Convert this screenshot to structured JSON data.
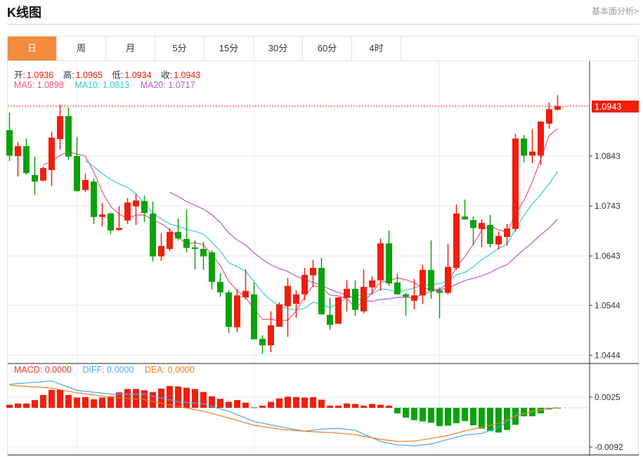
{
  "header": {
    "title": "K线图",
    "link": "基本面分析>"
  },
  "tabs": [
    {
      "label": "日",
      "active": true
    },
    {
      "label": "周"
    },
    {
      "label": "月"
    },
    {
      "label": "5分"
    },
    {
      "label": "15分"
    },
    {
      "label": "30分"
    },
    {
      "label": "60分"
    },
    {
      "label": "4时"
    }
  ],
  "ohlc_legend": {
    "open_label": "开:",
    "open": "1.0936",
    "high_label": "高:",
    "high": "1.0965",
    "low_label": "低:",
    "low": "1.0934",
    "close_label": "收:",
    "close": "1.0943"
  },
  "ma_legend": {
    "ma5": "MA5: 1.0898",
    "ma10": "MA10: 1.0813",
    "ma20": "MA20: 1.0717"
  },
  "macd_legend": {
    "macd": "MACD: 0.0000",
    "diff": "DIFF: 0.0000",
    "dea": "DEA: 0.0000"
  },
  "colors": {
    "up": "#f01e0a",
    "down": "#0aa30a",
    "ma5": "#f0508a",
    "ma10": "#36c8e0",
    "ma20": "#b45ac8",
    "diff": "#4aa8f0",
    "dea": "#f57a1e",
    "accent": "#f28b3c"
  },
  "chart_data": {
    "type": "candlestick",
    "price_axis_ticks": [
      "1.0843",
      "1.0743",
      "1.0643",
      "1.0544",
      "1.0444"
    ],
    "current_price": "1.0943",
    "ohlc_format": [
      "open",
      "high",
      "low",
      "close"
    ],
    "candles": [
      [
        1.0895,
        1.093,
        1.0833,
        1.0844
      ],
      [
        1.0843,
        1.0871,
        1.0802,
        1.0863
      ],
      [
        1.0863,
        1.0878,
        1.0806,
        1.0809
      ],
      [
        1.0805,
        1.0842,
        1.0766,
        1.0792
      ],
      [
        1.0794,
        1.0822,
        1.0792,
        1.0819
      ],
      [
        1.0815,
        1.0892,
        1.0783,
        1.088
      ],
      [
        1.0877,
        1.0946,
        1.0856,
        1.0923
      ],
      [
        1.0923,
        1.094,
        1.0836,
        1.0842
      ],
      [
        1.0843,
        1.0881,
        1.0772,
        1.0773
      ],
      [
        1.0775,
        1.0808,
        1.0771,
        1.0795
      ],
      [
        1.0792,
        1.0798,
        1.0707,
        1.0721
      ],
      [
        1.0721,
        1.0749,
        1.0702,
        1.0726
      ],
      [
        1.0728,
        1.073,
        1.0687,
        1.0694
      ],
      [
        1.0695,
        1.0743,
        1.0694,
        1.0699
      ],
      [
        1.0714,
        1.0759,
        1.0707,
        1.075
      ],
      [
        1.0742,
        1.0767,
        1.0705,
        1.0754
      ],
      [
        1.0753,
        1.0764,
        1.0711,
        1.0729
      ],
      [
        1.0728,
        1.0752,
        1.0632,
        1.0642
      ],
      [
        1.0642,
        1.0688,
        1.0633,
        1.0663
      ],
      [
        1.0657,
        1.0698,
        1.0653,
        1.0691
      ],
      [
        1.0691,
        1.0718,
        1.0674,
        1.0678
      ],
      [
        1.0677,
        1.0736,
        1.065,
        1.0659
      ],
      [
        1.066,
        1.0674,
        1.0616,
        1.0657
      ],
      [
        1.0657,
        1.0671,
        1.0615,
        1.0642
      ],
      [
        1.065,
        1.0654,
        1.0576,
        1.0591
      ],
      [
        1.0591,
        1.0608,
        1.0561,
        1.057
      ],
      [
        1.057,
        1.0574,
        1.0488,
        1.0501
      ],
      [
        1.05,
        1.0577,
        1.049,
        1.0564
      ],
      [
        1.056,
        1.0616,
        1.0556,
        1.0573
      ],
      [
        1.0566,
        1.059,
        1.0476,
        1.0476
      ],
      [
        1.0477,
        1.0484,
        1.0447,
        1.0464
      ],
      [
        1.0464,
        1.0532,
        1.045,
        1.0504
      ],
      [
        1.0501,
        1.055,
        1.0501,
        1.0546
      ],
      [
        1.0542,
        1.0599,
        1.0481,
        1.0583
      ],
      [
        1.0547,
        1.0574,
        1.0519,
        1.0566
      ],
      [
        1.0566,
        1.0619,
        1.0554,
        1.0605
      ],
      [
        1.0604,
        1.0635,
        1.0581,
        1.0619
      ],
      [
        1.0619,
        1.0639,
        1.0525,
        1.0526
      ],
      [
        1.0525,
        1.0559,
        1.0495,
        1.0505
      ],
      [
        1.0507,
        1.0561,
        1.0507,
        1.056
      ],
      [
        1.0559,
        1.0594,
        1.0532,
        1.0577
      ],
      [
        1.0577,
        1.0594,
        1.0523,
        1.0535
      ],
      [
        1.0532,
        1.0616,
        1.0528,
        1.0581
      ],
      [
        1.058,
        1.0602,
        1.0566,
        1.0594
      ],
      [
        1.0594,
        1.0678,
        1.0573,
        1.0668
      ],
      [
        1.0668,
        1.0694,
        1.0583,
        1.0588
      ],
      [
        1.059,
        1.0607,
        1.0566,
        1.0566
      ],
      [
        1.0566,
        1.0569,
        1.0523,
        1.0561
      ],
      [
        1.0553,
        1.0597,
        1.0536,
        1.0564
      ],
      [
        1.0564,
        1.0625,
        1.0547,
        1.0615
      ],
      [
        1.0615,
        1.0674,
        1.0557,
        1.0573
      ],
      [
        1.0574,
        1.058,
        1.0518,
        1.0569
      ],
      [
        1.0569,
        1.0667,
        1.0566,
        1.0621
      ],
      [
        1.0619,
        1.0746,
        1.0615,
        1.0728
      ],
      [
        1.0722,
        1.0756,
        1.0716,
        1.0716
      ],
      [
        1.0715,
        1.0722,
        1.0664,
        1.0699
      ],
      [
        1.0697,
        1.0716,
        1.066,
        1.0709
      ],
      [
        1.0705,
        1.0725,
        1.066,
        1.0667
      ],
      [
        1.0666,
        1.0692,
        1.0656,
        1.0683
      ],
      [
        1.0681,
        1.0707,
        1.0664,
        1.0698
      ],
      [
        1.0697,
        1.0887,
        1.0692,
        1.0878
      ],
      [
        1.0878,
        1.0885,
        1.083,
        1.0844
      ],
      [
        1.0844,
        1.0897,
        1.0829,
        1.0852
      ],
      [
        1.0844,
        1.0913,
        1.0825,
        1.0912
      ],
      [
        1.0908,
        1.0951,
        1.0898,
        1.0937
      ],
      [
        1.0936,
        1.0965,
        1.0934,
        1.0943
      ]
    ],
    "macd": {
      "axis_ticks": [
        "0.0025",
        "-0.0092"
      ],
      "histogram": [
        0.0007,
        0.001,
        0.001,
        0.0018,
        0.003,
        0.0042,
        0.0042,
        0.003,
        0.0024,
        0.0025,
        0.002,
        0.0024,
        0.0027,
        0.0036,
        0.0044,
        0.0044,
        0.0041,
        0.0037,
        0.0045,
        0.0051,
        0.005,
        0.0047,
        0.0044,
        0.0037,
        0.0027,
        0.0021,
        0.0014,
        0.0018,
        0.0012,
        0.0001,
        0.0005,
        0.0014,
        0.0022,
        0.0026,
        0.0025,
        0.0024,
        0.0025,
        0.0019,
        0.0005,
        0.0005,
        0.001,
        0.0009,
        0.0005,
        0.0009,
        0.0007,
        0.0005,
        -0.0013,
        -0.0023,
        -0.0029,
        -0.0032,
        -0.0035,
        -0.0043,
        -0.0042,
        -0.0036,
        -0.0031,
        -0.0041,
        -0.0049,
        -0.0055,
        -0.0058,
        -0.0052,
        -0.004,
        -0.002,
        -0.002,
        -0.0013,
        -0.0004,
        -0.0001
      ],
      "diff": [
        [
          0,
          0.0055
        ],
        [
          5,
          0.0063
        ],
        [
          8,
          0.0041
        ],
        [
          12,
          0.0032
        ],
        [
          16,
          0.0032
        ],
        [
          20,
          0.0014
        ],
        [
          23,
          0.0009
        ],
        [
          26,
          -0.0008
        ],
        [
          29,
          -0.0032
        ],
        [
          32,
          -0.0044
        ],
        [
          35,
          -0.0055
        ],
        [
          37,
          -0.005
        ],
        [
          39,
          -0.0048
        ],
        [
          41,
          -0.0053
        ],
        [
          44,
          -0.0079
        ],
        [
          46,
          -0.0087
        ],
        [
          48,
          -0.0089
        ],
        [
          50,
          -0.0085
        ],
        [
          52,
          -0.0074
        ],
        [
          54,
          -0.0064
        ],
        [
          56,
          -0.006
        ],
        [
          58,
          -0.0046
        ],
        [
          60,
          -0.0018
        ],
        [
          62,
          -0.0008
        ],
        [
          64,
          -0.0001
        ],
        [
          65,
          0.0
        ]
      ],
      "dea": [
        [
          0,
          0.0053
        ],
        [
          5,
          0.0046
        ],
        [
          8,
          0.0035
        ],
        [
          12,
          0.0025
        ],
        [
          16,
          0.0019
        ],
        [
          20,
          0.0003
        ],
        [
          23,
          -0.0008
        ],
        [
          26,
          -0.0024
        ],
        [
          29,
          -0.0041
        ],
        [
          32,
          -0.005
        ],
        [
          35,
          -0.0055
        ],
        [
          38,
          -0.0058
        ],
        [
          41,
          -0.0063
        ],
        [
          44,
          -0.0074
        ],
        [
          46,
          -0.0079
        ],
        [
          48,
          -0.0078
        ],
        [
          50,
          -0.0072
        ],
        [
          52,
          -0.0065
        ],
        [
          54,
          -0.0054
        ],
        [
          56,
          -0.0046
        ],
        [
          58,
          -0.0036
        ],
        [
          60,
          -0.002
        ],
        [
          62,
          -0.0008
        ],
        [
          64,
          -0.0002
        ],
        [
          65,
          0.0
        ]
      ]
    }
  }
}
